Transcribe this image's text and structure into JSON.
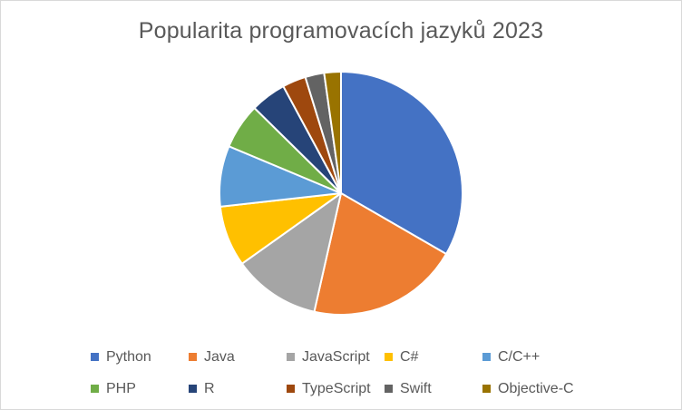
{
  "chart_data": {
    "type": "pie",
    "title": "Popularita programovacích jazyků 2023",
    "categories": [
      "Python",
      "Java",
      "JavaScript",
      "C#",
      "C/C++",
      "PHP",
      "R",
      "TypeScript",
      "Swift",
      "Objective-C"
    ],
    "values": [
      33.0,
      20.0,
      11.5,
      8.0,
      8.0,
      6.0,
      4.7,
      3.1,
      2.5,
      2.2
    ],
    "colors": [
      "#4472C4",
      "#ED7D31",
      "#A5A5A5",
      "#FFC000",
      "#5B9BD5",
      "#70AD47",
      "#264478",
      "#9E480E",
      "#636363",
      "#997300"
    ],
    "legend": "bottom"
  }
}
